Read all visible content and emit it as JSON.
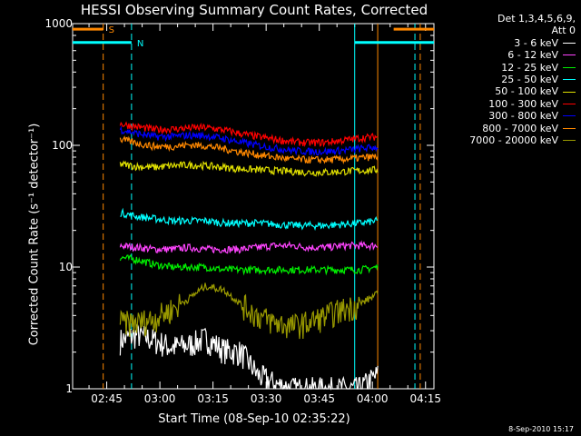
{
  "chart_data": {
    "type": "line",
    "title": "HESSI Observing Summary Count Rates, Corrected",
    "xlabel": "Start Time (08-Sep-10 02:35:22)",
    "ylabel": "Corrected Count Rate (s⁻¹ detector⁻¹)",
    "x_ticks": [
      "02:45",
      "03:00",
      "03:15",
      "03:30",
      "03:45",
      "04:00",
      "04:15"
    ],
    "x_tick_minutes": [
      165,
      180,
      195,
      210,
      225,
      240,
      255
    ],
    "xlim_minutes": [
      155.37,
      257.37
    ],
    "y_scale": "log",
    "ylim": [
      1,
      1000
    ],
    "y_ticks": [
      {
        "label": "1",
        "value": 1
      },
      {
        "label": "10",
        "value": 10
      },
      {
        "label": "100",
        "value": 100
      },
      {
        "label": "1000",
        "value": 1000
      }
    ],
    "data_window_minutes": [
      168.8,
      241.5
    ],
    "legend_header": [
      "Det 1,3,4,5,6,9,",
      "Att 0"
    ],
    "series": [
      {
        "name": "3 - 6 keV",
        "color": "#ffffff",
        "values": [
          2.5,
          2.8,
          2.5,
          2.2,
          2.3,
          2.6,
          2.1,
          2.0,
          1.3,
          1.1,
          1.0,
          1.0,
          1.0,
          1.0,
          1.0,
          1.3
        ]
      },
      {
        "name": "6 - 12 keV",
        "color": "#ff44ff",
        "values": [
          15,
          14.5,
          14,
          14,
          14.5,
          14,
          14,
          14,
          14.5,
          15,
          15,
          14.5,
          14.5,
          15,
          15,
          15
        ]
      },
      {
        "name": "12 - 25 keV",
        "color": "#00ee00",
        "values": [
          12,
          11.5,
          10.5,
          10,
          10,
          10,
          9.5,
          9.5,
          9.5,
          9.5,
          9.5,
          9.5,
          9.5,
          9.5,
          9.5,
          10
        ]
      },
      {
        "name": "25 - 50 keV",
        "color": "#00ffff",
        "values": [
          28,
          26,
          25,
          24,
          24,
          24,
          23,
          23,
          23,
          22.5,
          22,
          22,
          22,
          22.5,
          23,
          24
        ]
      },
      {
        "name": "50 - 100 keV",
        "color": "#e0e000",
        "values": [
          70,
          67,
          66,
          68,
          69,
          68,
          66,
          64,
          63,
          62,
          61,
          60,
          60,
          61,
          62,
          63
        ]
      },
      {
        "name": "100 - 300 keV",
        "color": "#ff0000",
        "values": [
          150,
          142,
          135,
          136,
          139,
          140,
          134,
          125,
          118,
          112,
          107,
          105,
          106,
          110,
          115,
          118
        ]
      },
      {
        "name": "300 - 800 keV",
        "color": "#0000ff",
        "values": [
          135,
          125,
          118,
          118,
          121,
          120,
          114,
          106,
          100,
          95,
          91,
          89,
          89,
          91,
          94,
          97
        ]
      },
      {
        "name": "800 - 7000 keV",
        "color": "#ff8800",
        "values": [
          112,
          104,
          98,
          98,
          101,
          99,
          94,
          88,
          84,
          80,
          77,
          76,
          76,
          77,
          79,
          81
        ]
      },
      {
        "name": "7000 - 20000 keV",
        "color": "#999900",
        "values": [
          3.5,
          3.5,
          3.8,
          4.5,
          5.5,
          7.0,
          6.5,
          5.0,
          4.0,
          3.5,
          3.3,
          3.5,
          4.0,
          4.5,
          5.0,
          6.0
        ]
      }
    ],
    "flags": [
      {
        "label": "S",
        "color": "#ff8800",
        "segments": [
          [
            155.37,
            164.0
          ],
          [
            246.0,
            257.37
          ]
        ],
        "level": 900
      },
      {
        "label": "N",
        "color": "#00ffff",
        "segments": [
          [
            155.37,
            172.0
          ],
          [
            235.0,
            257.37
          ]
        ],
        "level": 700
      }
    ],
    "vlines": [
      {
        "x": 164.0,
        "color": "#ff8800",
        "style": "dashed"
      },
      {
        "x": 172.0,
        "color": "#00ffff",
        "style": "dashed"
      },
      {
        "x": 235.0,
        "color": "#00ffff",
        "style": "solid"
      },
      {
        "x": 241.5,
        "color": "#ff8800",
        "style": "solid"
      },
      {
        "x": 252.0,
        "color": "#00ffff",
        "style": "dashed"
      },
      {
        "x": 253.5,
        "color": "#ff8800",
        "style": "dashed"
      }
    ]
  },
  "footer": {
    "timestamp": "8-Sep-2010 15:17"
  }
}
